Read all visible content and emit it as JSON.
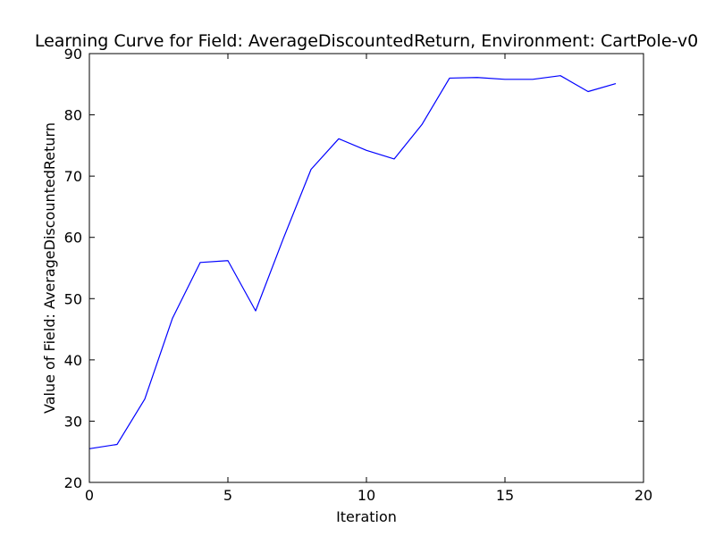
{
  "chart_data": {
    "type": "line",
    "title": "Learning Curve for Field: AverageDiscountedReturn, Environment: CartPole-v0",
    "xlabel": "Iteration",
    "ylabel": "Value of Field: AverageDiscountedReturn",
    "xlim": [
      0,
      20
    ],
    "ylim": [
      20,
      90
    ],
    "x_ticks": [
      "0",
      "5",
      "10",
      "15",
      "20"
    ],
    "y_ticks": [
      "20",
      "30",
      "40",
      "50",
      "60",
      "70",
      "80",
      "90"
    ],
    "grid": false,
    "legend": "none",
    "series": [
      {
        "color": "#0000ff",
        "x": [
          0,
          1,
          2,
          3,
          4,
          5,
          6,
          7,
          8,
          9,
          10,
          11,
          12,
          13,
          14,
          15,
          16,
          17,
          18,
          19
        ],
        "values": [
          25.5,
          26.2,
          33.6,
          46.8,
          55.9,
          56.2,
          48.0,
          59.8,
          71.1,
          76.1,
          74.2,
          72.8,
          78.4,
          86.0,
          86.1,
          85.8,
          85.8,
          86.4,
          83.8,
          85.1
        ]
      }
    ]
  }
}
